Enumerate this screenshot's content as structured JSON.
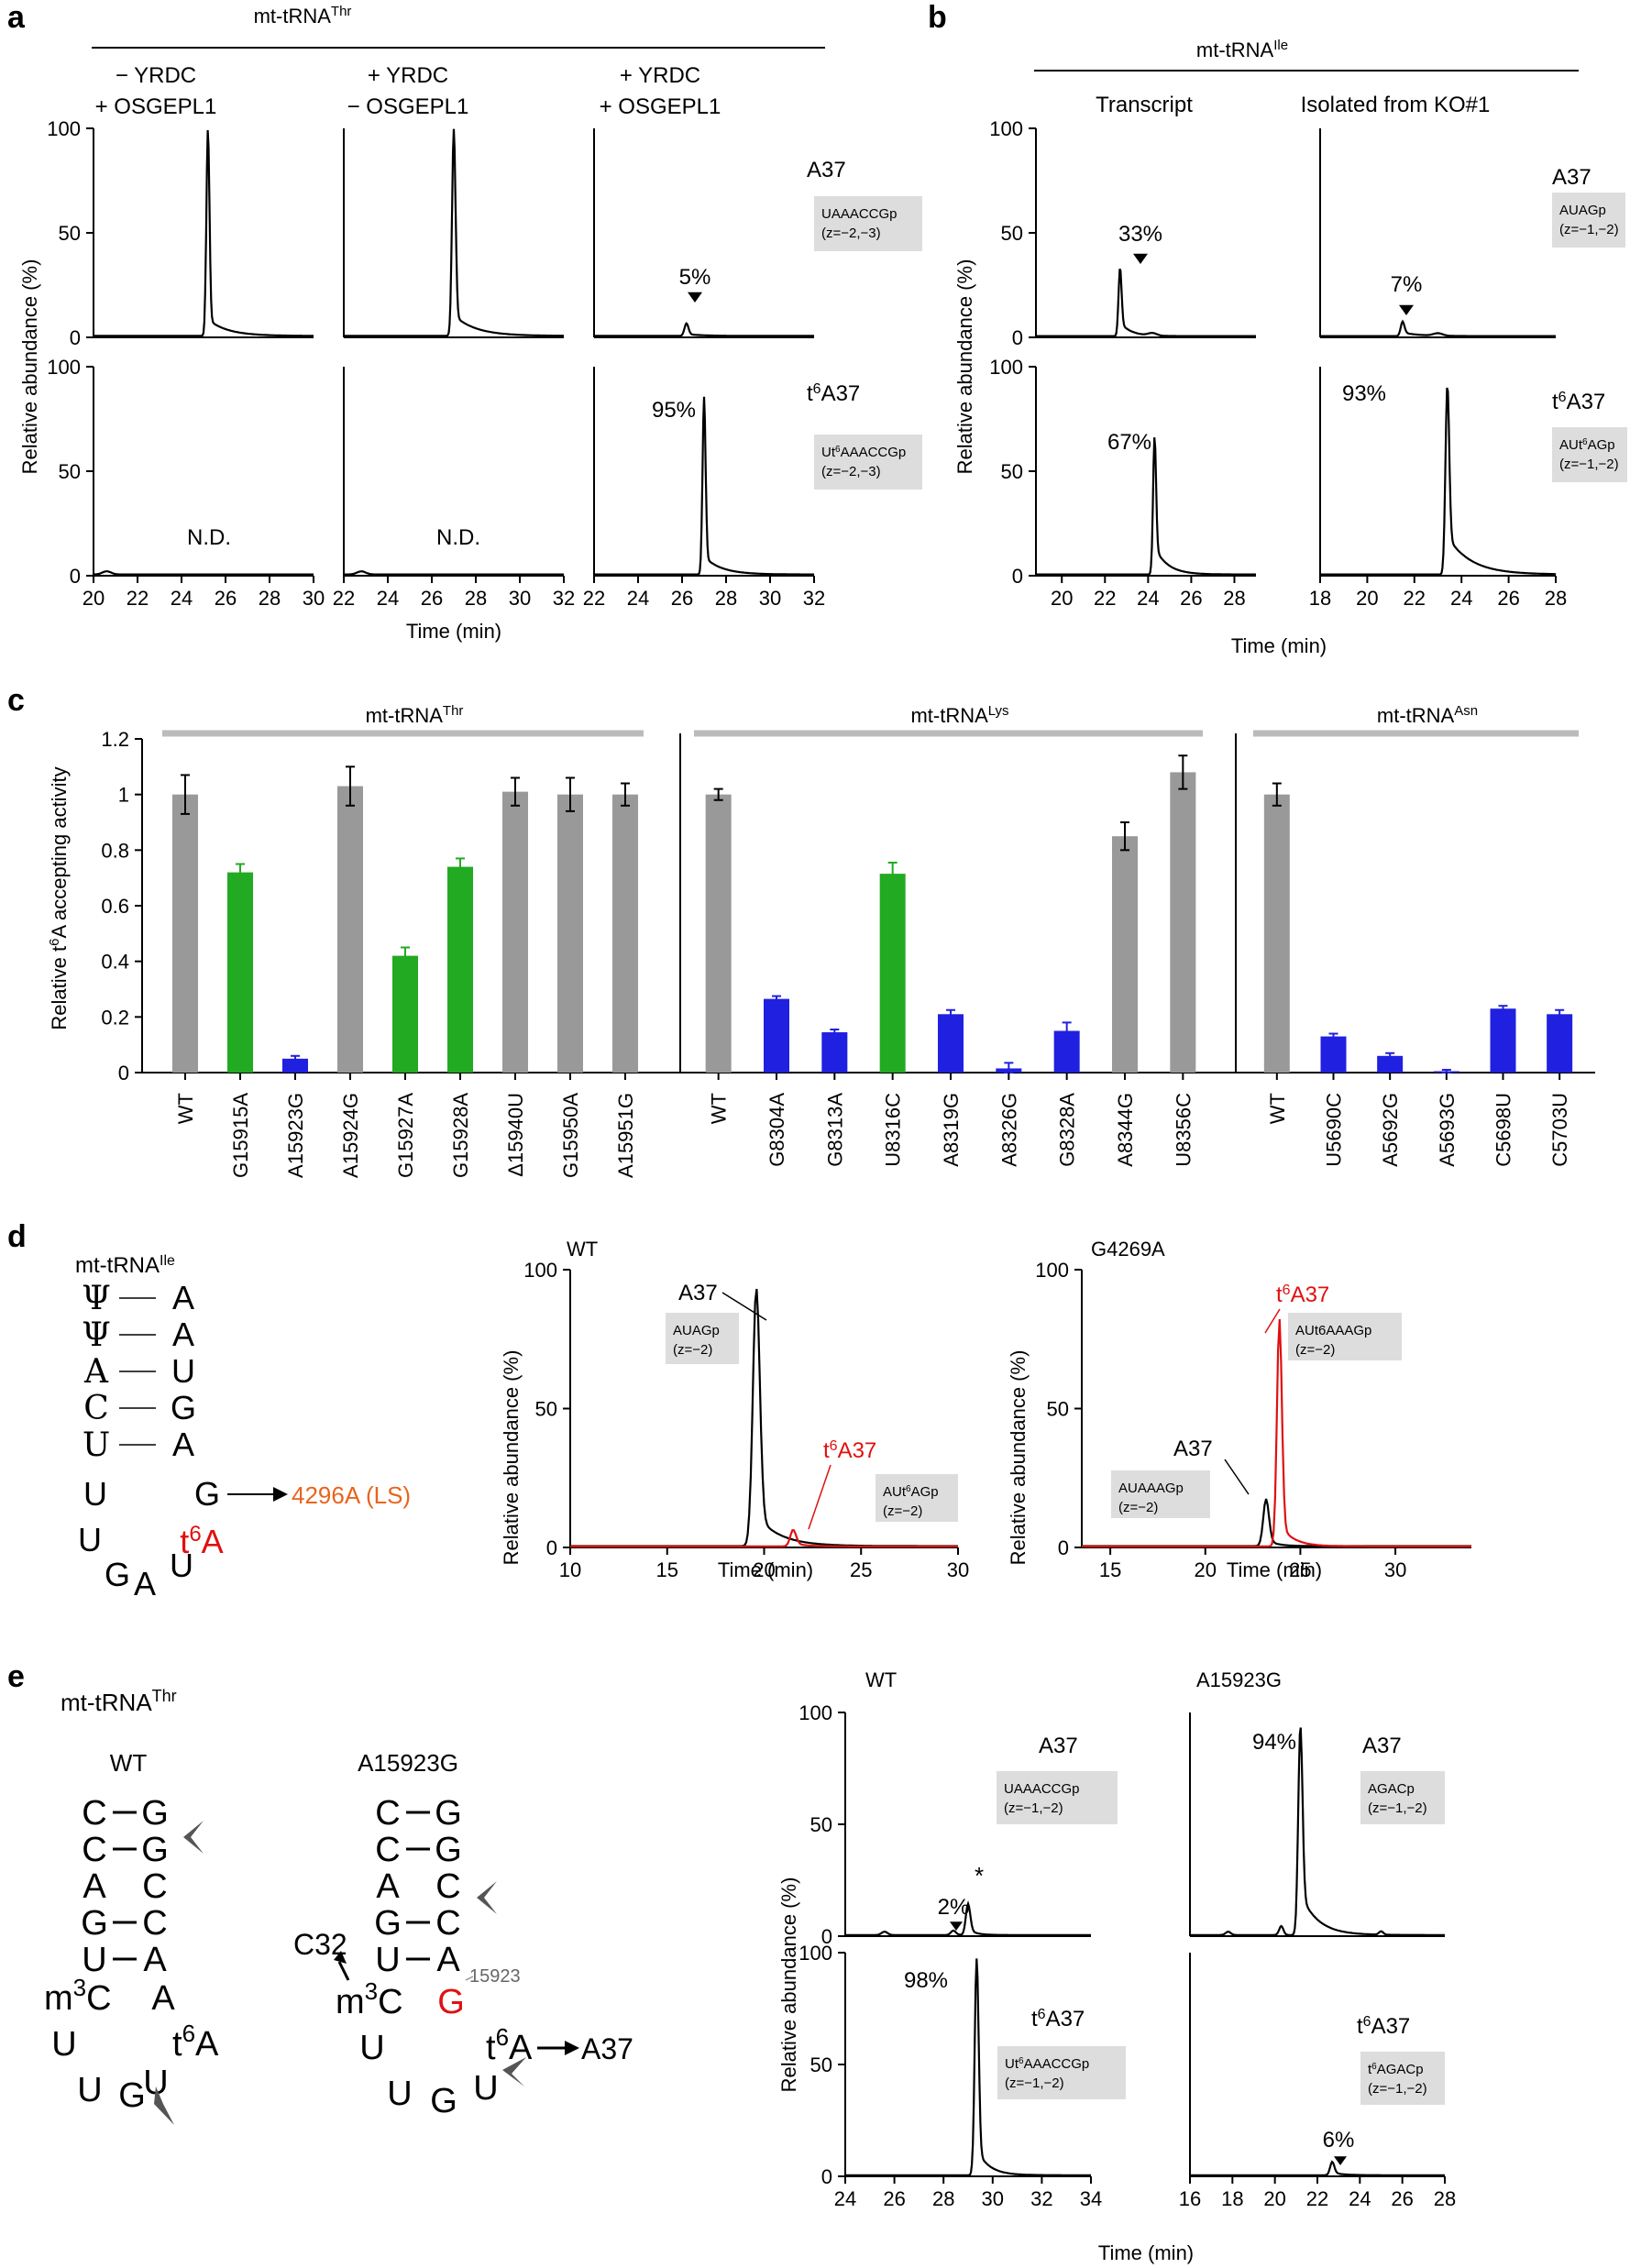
{
  "panel_labels": [
    "a",
    "b",
    "c",
    "d",
    "e"
  ],
  "colors": {
    "gray_bar": "#999999",
    "green_bar": "#22aa22",
    "blue_bar": "#2020e0",
    "red": "#e01010",
    "orange": "#e8641e",
    "header_rule": "#bbbbbb",
    "box": "#dddddd"
  },
  "panel_a": {
    "header_name": "mt-tRNA",
    "header_sup": "Thr",
    "conditions": [
      [
        "− YRDC",
        "+ OSGEPL1"
      ],
      [
        "+ YRDC",
        "− OSGEPL1"
      ],
      [
        "+ YRDC",
        "+ OSGEPL1"
      ]
    ],
    "row_labels": [
      "A37",
      "A37"
    ],
    "row_label_t6_prefix": "t",
    "row_label_t6_sup": "6",
    "box_top": [
      "UAAACCGp",
      "(z=−2,−3)"
    ],
    "box_bottom_parts": [
      "Ut",
      "6",
      "AAACCGp"
    ],
    "box_bottom_charge": "(z=−2,−3)",
    "ylabel": "Relative abundance (%)",
    "yticks": [
      "0",
      "50",
      "100"
    ],
    "xticks_1": [
      "20",
      "22",
      "24",
      "26",
      "28",
      "30"
    ],
    "xticks_2": [
      "22",
      "24",
      "26",
      "28",
      "30",
      "32"
    ],
    "xticks_3": [
      "22",
      "24",
      "26",
      "28",
      "30",
      "32"
    ],
    "xlabel": "Time (min)",
    "nd": "N.D.",
    "pct_top": "5%",
    "pct_bottom": "95%"
  },
  "panel_b": {
    "header_name": "mt-tRNA",
    "header_sup": "Ile",
    "col_titles": [
      "Transcript",
      "Isolated from KO#1"
    ],
    "row_label_top": "A37",
    "row_label_bottom": "A37",
    "box_top": [
      "AUAGp",
      "(z=−1,−2)"
    ],
    "box_bottom_parts": [
      "AUt",
      "6",
      "AGp"
    ],
    "box_bottom_charge": "(z=−1,−2)",
    "ylabel": "Relative abundance (%)",
    "yticks": [
      "0",
      "50",
      "100"
    ],
    "xticks_1": [
      "20",
      "22",
      "24",
      "26",
      "28"
    ],
    "xticks_2": [
      "18",
      "20",
      "22",
      "24",
      "26",
      "28"
    ],
    "xlabel": "Time (min)",
    "pcts": [
      "33%",
      "7%",
      "67%",
      "93%"
    ]
  },
  "chart_data": {
    "type": "bar",
    "title": "",
    "ylabel_parts": [
      "Relative t",
      "6",
      "A accepting activity"
    ],
    "ylim": [
      0,
      1.2
    ],
    "yticks": [
      "0",
      "0.2",
      "0.4",
      "0.6",
      "0.8",
      "1",
      "1.2"
    ],
    "groups": [
      {
        "name": "mt-tRNA",
        "sup": "Thr",
        "categories": [
          "WT",
          "G15915A",
          "A15923G",
          "A15924G",
          "G15927A",
          "G15928A",
          "Δ15940U",
          "G15950A",
          "A15951G"
        ],
        "values": [
          1.0,
          0.72,
          0.05,
          1.03,
          0.42,
          0.74,
          1.01,
          1.0,
          1.0
        ],
        "errors": [
          0.07,
          0.03,
          0.01,
          0.07,
          0.03,
          0.03,
          0.05,
          0.06,
          0.04
        ],
        "colors": [
          "gray",
          "green",
          "blue",
          "gray",
          "green",
          "green",
          "gray",
          "gray",
          "gray"
        ]
      },
      {
        "name": "mt-tRNA",
        "sup": "Lys",
        "categories": [
          "WT",
          "G8304A",
          "G8313A",
          "U8316C",
          "A8319G",
          "A8326G",
          "G8328A",
          "A8344G",
          "U8356C"
        ],
        "values": [
          1.0,
          0.265,
          0.145,
          0.715,
          0.21,
          0.015,
          0.15,
          0.85,
          1.08
        ],
        "errors": [
          0.02,
          0.01,
          0.01,
          0.04,
          0.015,
          0.02,
          0.03,
          0.05,
          0.06
        ],
        "colors": [
          "gray",
          "blue",
          "blue",
          "green",
          "blue",
          "blue",
          "blue",
          "gray",
          "gray"
        ]
      },
      {
        "name": "mt-tRNA",
        "sup": "Asn",
        "categories": [
          "WT",
          "U5690C",
          "A5692G",
          "A5693G",
          "C5698U",
          "C5703U"
        ],
        "values": [
          1.0,
          0.13,
          0.06,
          0.005,
          0.23,
          0.21
        ],
        "errors": [
          0.04,
          0.01,
          0.01,
          0.005,
          0.01,
          0.015
        ],
        "colors": [
          "gray",
          "blue",
          "blue",
          "blue",
          "blue",
          "blue"
        ]
      }
    ]
  },
  "panel_d": {
    "trna_name": "mt-tRNA",
    "trna_sup": "Ile",
    "stem_pairs": [
      [
        "Ψ",
        "A"
      ],
      [
        "Ψ",
        "A"
      ],
      [
        "A",
        "U"
      ],
      [
        "C",
        "G"
      ],
      [
        "U",
        "A"
      ]
    ],
    "loop_left": [
      "U",
      "U",
      "G"
    ],
    "loop_right": [
      "G",
      "t",
      "6",
      "A",
      "U"
    ],
    "loop_bottom": "A",
    "mutation": "4296A (LS)",
    "wt_title": "WT",
    "mut_title": "G4269A",
    "ylabel": "Relative abundance (%)",
    "yticks": [
      "0",
      "50",
      "100"
    ],
    "xticks_wt": [
      "10",
      "15",
      "20",
      "25",
      "30"
    ],
    "xticks_mut": [
      "15",
      "20",
      "25",
      "30"
    ],
    "xlabel": "Time (min)",
    "wt_a37": "A37",
    "wt_box_a37": [
      "AUAGp",
      "(z=−2)"
    ],
    "wt_t6_label": [
      "t",
      "6",
      "A37"
    ],
    "wt_box_t6": [
      "AUt",
      "6",
      "AGp",
      "(z=−2)"
    ],
    "mut_t6_label": [
      "t",
      "6",
      "A37"
    ],
    "mut_box_t6": [
      "AUt6AAAGp",
      "(z=−2)"
    ],
    "mut_a37": "A37",
    "mut_box_a37": [
      "AUAAAGp",
      "(z=−2)"
    ]
  },
  "panel_e": {
    "trna_name": "mt-tRNA",
    "trna_sup": "Thr",
    "wt_title": "WT",
    "mut_title": "A15923G",
    "wt_pairs": [
      [
        "C",
        "G"
      ],
      [
        "C",
        "G"
      ],
      [
        "A",
        "C"
      ],
      [
        "G",
        "C"
      ],
      [
        "U",
        "A"
      ]
    ],
    "m3c": [
      "m",
      "3",
      "C"
    ],
    "loop_letters": [
      "A",
      "U",
      "U",
      "G",
      "U"
    ],
    "t6a": [
      "t",
      "6",
      "A"
    ],
    "mut_g": "G",
    "mut_pos": "15923",
    "c32": "C32",
    "a37_arrow": "A37",
    "chrom_wt_title": "WT",
    "chrom_mut_title": "A15923G",
    "ylabel": "Relative abundance (%)",
    "yticks": [
      "0",
      "50",
      "100"
    ],
    "xticks_wt": [
      "24",
      "26",
      "28",
      "30",
      "32",
      "34"
    ],
    "xticks_mut": [
      "16",
      "18",
      "20",
      "22",
      "24",
      "26",
      "28"
    ],
    "xlabel": "Time (min)",
    "wt_top_label": "A37",
    "wt_top_box": [
      "UAAACCGp",
      "(z=−1,−2)"
    ],
    "wt_bottom_box": [
      "Ut",
      "6",
      "AAACCGp",
      "(z=−1,−2)"
    ],
    "mut_top_label": "A37",
    "mut_top_box": [
      "AGACp",
      "(z=−1,−2)"
    ],
    "mut_bottom_box": [
      "t",
      "6",
      "AGACp",
      "(z=−1,−2)"
    ],
    "pct_wt_top": "2%",
    "star": "*",
    "pct_wt_bottom": "98%",
    "pct_mut_top": "94%",
    "pct_mut_bottom": "6%"
  }
}
